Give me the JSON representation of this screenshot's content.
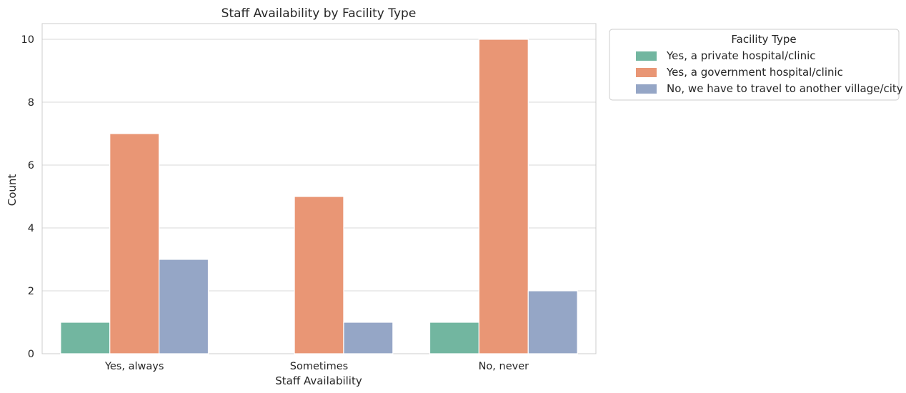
{
  "chart_data": {
    "type": "bar",
    "title": "Staff Availability by Facility Type",
    "xlabel": "Staff Availability",
    "ylabel": "Count",
    "categories": [
      "Yes, always",
      "Sometimes",
      "No, never"
    ],
    "ylim": [
      0,
      10.5
    ],
    "yticks": [
      0,
      2,
      4,
      6,
      8,
      10
    ],
    "grid": true,
    "legend": {
      "title": "Facility Type",
      "placement": "outside-top-right"
    },
    "series": [
      {
        "name": "Yes, a private hospital/clinic",
        "color": "#72b6a0",
        "values": [
          1,
          0,
          1
        ]
      },
      {
        "name": "Yes, a government hospital/clinic",
        "color": "#e99675",
        "values": [
          7,
          5,
          10
        ]
      },
      {
        "name": "No, we have to travel to another village/city",
        "color": "#95a6c6",
        "values": [
          3,
          1,
          2
        ]
      }
    ]
  }
}
